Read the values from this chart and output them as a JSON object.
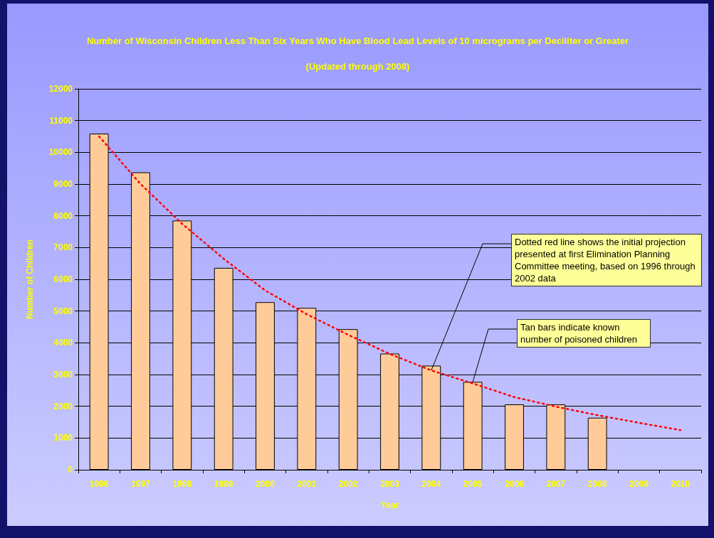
{
  "chart_data": {
    "type": "bar",
    "title": "Number of Wisconsin Children Less Than Six Years Who Have Blood Lead Levels of 10 micrograms per Deciliter or Greater",
    "subtitle": "(Updated through 2008)",
    "xlabel": "Year",
    "ylabel": "Number of Children",
    "categories": [
      "1996",
      "1997",
      "1998",
      "1999",
      "2000",
      "2001",
      "2002",
      "2003",
      "2004",
      "2005",
      "2006",
      "2007",
      "2008",
      "2009",
      "2010"
    ],
    "series": [
      {
        "color": "#ffcc99",
        "values": [
          10590,
          9370,
          7850,
          6360,
          5280,
          5100,
          4430,
          3660,
          3280,
          2770,
          2060,
          2060,
          1640,
          null,
          null
        ]
      },
      {
        "type": "line",
        "color": "#ff0000",
        "values": [
          10500,
          9000,
          7750,
          6650,
          5650,
          4900,
          4250,
          3650,
          3130,
          2720,
          2290,
          1990,
          1720,
          1480,
          1250
        ]
      }
    ],
    "ylim": [
      0,
      12000
    ],
    "yticks": [
      0,
      1000,
      2000,
      3000,
      4000,
      5000,
      6000,
      7000,
      8000,
      9000,
      10000,
      11000,
      12000
    ],
    "grid": "y",
    "line_style": "dotted",
    "annotations": [
      {
        "text": "Dotted red line shows the initial projection presented at first Elimination Planning Committee meeting, based on 1996 through 2002 data",
        "x": "2004",
        "y": 3130
      },
      {
        "text": "Tan bars indicate known number of poisoned children",
        "x": "2005",
        "y": 2770
      }
    ]
  }
}
